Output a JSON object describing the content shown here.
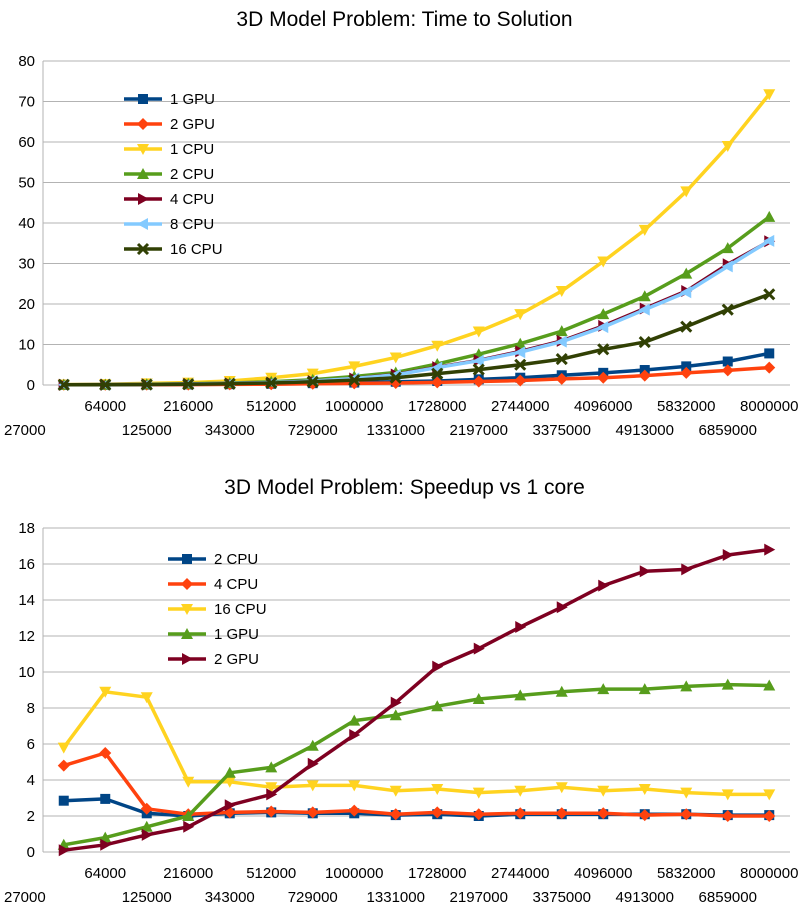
{
  "chart_data": [
    {
      "type": "line",
      "title": "3D Model Problem: Time to Solution",
      "xlabel": "",
      "ylabel": "",
      "ylim": [
        0,
        80
      ],
      "yticks": [
        0,
        10,
        20,
        30,
        40,
        50,
        60,
        70,
        80
      ],
      "grid": true,
      "legend": "top-left",
      "categories": [
        "27000",
        "64000",
        "125000",
        "216000",
        "343000",
        "512000",
        "729000",
        "1000000",
        "1331000",
        "1728000",
        "2197000",
        "2744000",
        "3375000",
        "4096000",
        "4913000",
        "5832000",
        "6859000",
        "8000000"
      ],
      "series": [
        {
          "name": "1 GPU",
          "color": "#004586",
          "marker": "square",
          "values": [
            0.05,
            0.05,
            0.1,
            0.15,
            0.2,
            0.3,
            0.45,
            0.6,
            0.8,
            1.0,
            1.4,
            1.8,
            2.4,
            3.0,
            3.7,
            4.6,
            5.8,
            7.8
          ]
        },
        {
          "name": "2 GPU",
          "color": "#ff420e",
          "marker": "diamond",
          "values": [
            0.05,
            0.05,
            0.08,
            0.1,
            0.15,
            0.2,
            0.3,
            0.4,
            0.5,
            0.65,
            0.85,
            1.1,
            1.5,
            1.8,
            2.3,
            3.0,
            3.6,
            4.3
          ]
        },
        {
          "name": "1 CPU",
          "color": "#ffd320",
          "marker": "triangle-down",
          "values": [
            0.1,
            0.2,
            0.4,
            0.6,
            1.0,
            1.8,
            2.8,
            4.6,
            6.8,
            9.7,
            13.2,
            17.5,
            23.2,
            30.5,
            38.3,
            47.8,
            59.0,
            71.8
          ]
        },
        {
          "name": "2 CPU",
          "color": "#579d1c",
          "marker": "triangle-up",
          "values": [
            0.05,
            0.1,
            0.2,
            0.3,
            0.5,
            0.8,
            1.3,
            2.1,
            3.1,
            5.2,
            7.6,
            10.2,
            13.3,
            17.5,
            21.9,
            27.5,
            33.8,
            41.5
          ]
        },
        {
          "name": "4 CPU",
          "color": "#7e0021",
          "marker": "triangle-right",
          "values": [
            0.05,
            0.1,
            0.15,
            0.25,
            0.4,
            0.6,
            1.0,
            1.6,
            2.6,
            4.4,
            6.1,
            8.3,
            10.9,
            14.6,
            18.9,
            23.2,
            29.8,
            35.5
          ]
        },
        {
          "name": "8 CPU",
          "color": "#83caff",
          "marker": "triangle-left",
          "values": [
            0.05,
            0.08,
            0.15,
            0.25,
            0.4,
            0.6,
            1.0,
            1.6,
            2.5,
            4.3,
            6.0,
            8.1,
            10.7,
            14.3,
            18.6,
            22.9,
            29.3,
            35.6
          ]
        },
        {
          "name": "16 CPU",
          "color": "#314004",
          "marker": "x",
          "values": [
            0.05,
            0.07,
            0.12,
            0.2,
            0.3,
            0.5,
            0.8,
            1.2,
            1.8,
            2.8,
            3.8,
            5.0,
            6.4,
            8.8,
            10.6,
            14.4,
            18.6,
            22.4
          ]
        }
      ]
    },
    {
      "type": "line",
      "title": "3D Model Problem: Speedup vs 1 core",
      "xlabel": "",
      "ylabel": "",
      "ylim": [
        0,
        18
      ],
      "yticks": [
        0,
        2,
        4,
        6,
        8,
        10,
        12,
        14,
        16,
        18
      ],
      "grid": true,
      "legend": "top-left",
      "categories": [
        "27000",
        "64000",
        "125000",
        "216000",
        "343000",
        "512000",
        "729000",
        "1000000",
        "1331000",
        "1728000",
        "2197000",
        "2744000",
        "3375000",
        "4096000",
        "4913000",
        "5832000",
        "6859000",
        "8000000"
      ],
      "series": [
        {
          "name": "2 CPU",
          "color": "#004586",
          "marker": "square",
          "values": [
            2.85,
            2.95,
            2.15,
            2.0,
            2.15,
            2.2,
            2.15,
            2.15,
            2.05,
            2.1,
            2.0,
            2.1,
            2.1,
            2.1,
            2.1,
            2.1,
            2.05,
            2.05
          ]
        },
        {
          "name": "4 CPU",
          "color": "#ff420e",
          "marker": "diamond",
          "values": [
            4.8,
            5.5,
            2.4,
            2.1,
            2.2,
            2.25,
            2.2,
            2.3,
            2.1,
            2.2,
            2.1,
            2.15,
            2.15,
            2.15,
            2.05,
            2.1,
            2.0,
            2.0
          ]
        },
        {
          "name": "16 CPU",
          "color": "#ffd320",
          "marker": "triangle-down",
          "values": [
            5.8,
            8.9,
            8.6,
            3.9,
            3.9,
            3.6,
            3.7,
            3.7,
            3.4,
            3.5,
            3.3,
            3.4,
            3.6,
            3.4,
            3.5,
            3.3,
            3.2,
            3.2
          ]
        },
        {
          "name": "1 GPU",
          "color": "#579d1c",
          "marker": "triangle-up",
          "values": [
            0.4,
            0.8,
            1.4,
            2.0,
            4.4,
            4.7,
            5.9,
            7.3,
            7.6,
            8.1,
            8.5,
            8.7,
            8.9,
            9.05,
            9.05,
            9.2,
            9.3,
            9.25
          ]
        },
        {
          "name": "2 GPU",
          "color": "#7e0021",
          "marker": "triangle-right",
          "values": [
            0.1,
            0.4,
            0.95,
            1.4,
            2.6,
            3.2,
            4.9,
            6.5,
            8.3,
            10.3,
            11.3,
            12.5,
            13.6,
            14.8,
            15.6,
            15.7,
            16.5,
            16.8
          ]
        }
      ]
    }
  ]
}
